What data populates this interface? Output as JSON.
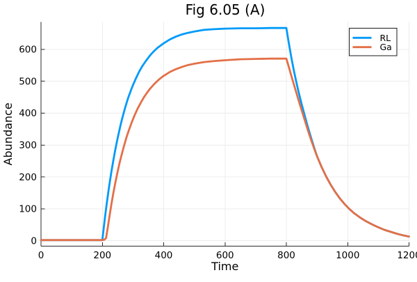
{
  "chart_data": {
    "type": "line",
    "title": "Fig 6.05 (A)",
    "xlabel": "Time",
    "ylabel": "Abundance",
    "xlim": [
      0,
      1200
    ],
    "ylim": [
      -17,
      686
    ],
    "xticks": [
      0,
      200,
      400,
      600,
      800,
      1000,
      1200
    ],
    "yticks": [
      0,
      100,
      200,
      300,
      400,
      500,
      600
    ],
    "grid": true,
    "legend_position": "top-right",
    "series": [
      {
        "name": "RL",
        "color": "#009AF9",
        "x": [
          0,
          60,
          120,
          180,
          200,
          205,
          210,
          215,
          220,
          225,
          230,
          235,
          240,
          245,
          250,
          255,
          260,
          265,
          270,
          275,
          280,
          285,
          290,
          295,
          300,
          310,
          320,
          330,
          340,
          350,
          360,
          370,
          380,
          390,
          400,
          420,
          440,
          460,
          480,
          500,
          530,
          560,
          600,
          650,
          700,
          750,
          800,
          808,
          816,
          824,
          832,
          840,
          850,
          860,
          870,
          880,
          890,
          900,
          915,
          930,
          945,
          960,
          975,
          990,
          1005,
          1020,
          1040,
          1060,
          1080,
          1100,
          1120,
          1140,
          1160,
          1180,
          1200
        ],
        "y": [
          2,
          2,
          2,
          2,
          2,
          44,
          84,
          121,
          156,
          188,
          219,
          247,
          274,
          299,
          322,
          344,
          365,
          384,
          402,
          419,
          435,
          450,
          463,
          476,
          488,
          510,
          530,
          547,
          561,
          574,
          586,
          596,
          605,
          612,
          619,
          631,
          640,
          647,
          652,
          656,
          661,
          663,
          665,
          666,
          666,
          667,
          667,
          620,
          576,
          536,
          500,
          466,
          428,
          392,
          357,
          325,
          294,
          265,
          231,
          201,
          175,
          152,
          132,
          115,
          100,
          87,
          73,
          61,
          51,
          42,
          34,
          28,
          22,
          17,
          13
        ]
      },
      {
        "name": "Ga",
        "color": "#E36F47",
        "x": [
          0,
          60,
          120,
          180,
          200,
          206,
          212,
          218,
          224,
          230,
          236,
          242,
          248,
          255,
          262,
          270,
          278,
          286,
          295,
          305,
          315,
          325,
          335,
          345,
          355,
          370,
          385,
          400,
          420,
          440,
          460,
          480,
          500,
          530,
          560,
          600,
          650,
          700,
          750,
          800,
          808,
          816,
          824,
          832,
          840,
          850,
          860,
          870,
          880,
          890,
          900,
          915,
          930,
          945,
          960,
          975,
          990,
          1005,
          1020,
          1040,
          1060,
          1080,
          1100,
          1120,
          1140,
          1160,
          1180,
          1200
        ],
        "y": [
          2,
          2,
          2,
          2,
          2,
          3,
          8,
          43,
          81,
          117,
          150,
          180,
          208,
          239,
          266,
          295,
          322,
          345,
          369,
          393,
          414,
          432,
          449,
          463,
          476,
          492,
          506,
          517,
          529,
          538,
          545,
          551,
          555,
          560,
          563,
          566,
          569,
          570,
          571,
          571,
          545,
          518,
          492,
          466,
          440,
          409,
          378,
          347,
          318,
          291,
          265,
          231,
          201,
          175,
          152,
          132,
          115,
          100,
          87,
          73,
          61,
          51,
          42,
          34,
          28,
          22,
          17,
          13
        ]
      }
    ],
    "style": {
      "grid_color": "#ECECEC",
      "axis_color": "#2A2A2A",
      "line_width": 2.8,
      "legend_border": "#1A1A1A"
    }
  }
}
